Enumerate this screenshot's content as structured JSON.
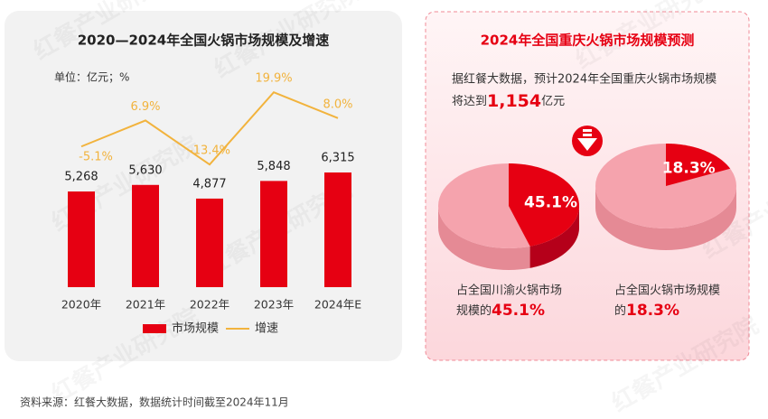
{
  "chart_data": [
    {
      "type": "bar-line",
      "title": "2020—2024年全国火锅市场规模及增速",
      "unit": "单位：亿元；%",
      "categories": [
        "2020年",
        "2021年",
        "2022年",
        "2023年",
        "2024年E"
      ],
      "series": [
        {
          "name": "市场规模",
          "type": "bar",
          "color": "#e60012",
          "values": [
            5268,
            5630,
            4877,
            5848,
            6315
          ],
          "value_labels": [
            "5,268",
            "5,630",
            "4,877",
            "5,848",
            "6,315"
          ]
        },
        {
          "name": "增速",
          "type": "line",
          "color": "#f2b33d",
          "values": [
            -5.1,
            6.9,
            -13.4,
            19.9,
            8.0
          ],
          "value_labels": [
            "-5.1%",
            "6.9%",
            "-13.4%",
            "19.9%",
            "8.0%"
          ]
        }
      ]
    },
    {
      "type": "pie",
      "values": [
        45.1
      ],
      "value_labels": [
        "45.1%"
      ],
      "color": "#e60012",
      "caption_line1": "占全国川渝火锅市场",
      "caption_line2": "规模的",
      "caption_highlight": "45.1%"
    },
    {
      "type": "pie",
      "values": [
        18.3
      ],
      "value_labels": [
        "18.3%"
      ],
      "color": "#e60012",
      "caption_line1": "占全国火锅市场规模",
      "caption_line2": "的",
      "caption_highlight": "18.3%"
    }
  ],
  "forecast": {
    "title": "2024年全国重庆火锅市场规模预测",
    "line1": "据红餐大数据，预计2024年全国重庆火锅市场规模",
    "prefix": "将达到",
    "amount": "1,154",
    "unit": "亿元"
  },
  "source": "资料来源：红餐大数据，数据统计时间截至2024年11月",
  "watermark": "红餐产业研究院"
}
